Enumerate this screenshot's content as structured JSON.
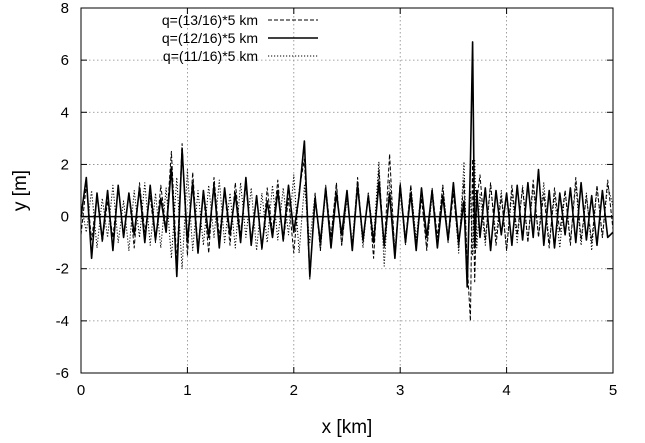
{
  "chart_data": {
    "type": "line",
    "xlabel": "x  [km]",
    "ylabel": "y  [m]",
    "xlim": [
      0,
      5
    ],
    "ylim": [
      -6,
      8
    ],
    "x_ticks": [
      0,
      1,
      2,
      3,
      4,
      5
    ],
    "y_ticks": [
      -6,
      -4,
      -2,
      0,
      2,
      4,
      6,
      8
    ],
    "grid": true,
    "legend_position": "top-left",
    "series": [
      {
        "name": "q=(13/16)*5 km",
        "style": "dashed",
        "color": "#000000",
        "x": [
          0.0,
          0.05,
          0.1,
          0.15,
          0.2,
          0.25,
          0.3,
          0.35,
          0.4,
          0.45,
          0.5,
          0.55,
          0.6,
          0.65,
          0.7,
          0.75,
          0.8,
          0.85,
          0.9,
          0.95,
          1.0,
          1.05,
          1.1,
          1.15,
          1.2,
          1.25,
          1.3,
          1.35,
          1.4,
          1.45,
          1.5,
          1.55,
          1.6,
          1.65,
          1.7,
          1.75,
          1.8,
          1.85,
          1.9,
          1.95,
          2.0,
          2.05,
          2.1,
          2.15,
          2.2,
          2.25,
          2.3,
          2.35,
          2.4,
          2.45,
          2.5,
          2.55,
          2.6,
          2.65,
          2.7,
          2.75,
          2.8,
          2.85,
          2.9,
          2.95,
          3.0,
          3.05,
          3.1,
          3.15,
          3.2,
          3.25,
          3.3,
          3.35,
          3.4,
          3.45,
          3.5,
          3.55,
          3.6,
          3.63,
          3.66,
          3.68,
          3.7,
          3.72,
          3.75,
          3.8,
          3.85,
          3.9,
          3.95,
          4.0,
          4.05,
          4.1,
          4.15,
          4.2,
          4.25,
          4.3,
          4.35,
          4.4,
          4.45,
          4.5,
          4.55,
          4.6,
          4.65,
          4.7,
          4.75,
          4.8,
          4.85,
          4.9,
          4.95,
          5.0
        ],
        "y": [
          -0.7,
          1.2,
          -0.9,
          0.8,
          -1.0,
          0.6,
          -0.8,
          1.1,
          -0.7,
          0.9,
          -1.2,
          1.3,
          -0.6,
          0.8,
          -1.0,
          1.2,
          -0.5,
          2.5,
          -1.8,
          2.8,
          -1.5,
          1.7,
          -1.2,
          0.9,
          -1.4,
          1.5,
          -0.8,
          1.0,
          -1.1,
          1.3,
          -0.7,
          1.2,
          -0.9,
          0.8,
          -1.3,
          1.1,
          -0.6,
          1.4,
          -1.0,
          0.7,
          -1.4,
          1.0,
          2.2,
          -2.4,
          0.9,
          -1.3,
          1.2,
          -0.8,
          1.3,
          -1.1,
          0.8,
          -1.2,
          1.5,
          -1.0,
          0.9,
          -1.6,
          1.8,
          -1.2,
          2.4,
          -1.5,
          1.3,
          -0.9,
          1.2,
          -1.1,
          0.7,
          -1.3,
          1.1,
          -0.8,
          1.2,
          -1.0,
          0.9,
          -1.2,
          1.4,
          -1.8,
          -4.0,
          2.2,
          -2.5,
          0.6,
          1.6,
          -0.9,
          1.3,
          -1.1,
          0.8,
          -1.3,
          1.2,
          -0.7,
          1.1,
          -1.0,
          1.4,
          -0.8,
          0.9,
          -1.2,
          1.1,
          -0.6,
          1.0,
          -1.1,
          1.5,
          -0.9,
          0.8,
          -1.0,
          1.2,
          -0.8,
          1.4,
          -0.5
        ]
      },
      {
        "name": "q=(12/16)*5 km",
        "style": "solid",
        "color": "#000000",
        "x": [
          0.0,
          0.05,
          0.1,
          0.15,
          0.2,
          0.25,
          0.3,
          0.35,
          0.4,
          0.45,
          0.5,
          0.55,
          0.6,
          0.65,
          0.7,
          0.75,
          0.8,
          0.85,
          0.9,
          0.95,
          1.0,
          1.05,
          1.1,
          1.15,
          1.2,
          1.25,
          1.3,
          1.35,
          1.4,
          1.45,
          1.5,
          1.55,
          1.6,
          1.65,
          1.7,
          1.75,
          1.8,
          1.85,
          1.9,
          1.95,
          2.0,
          2.05,
          2.1,
          2.15,
          2.2,
          2.25,
          2.3,
          2.35,
          2.4,
          2.45,
          2.5,
          2.55,
          2.6,
          2.65,
          2.7,
          2.75,
          2.8,
          2.85,
          2.9,
          2.95,
          3.0,
          3.05,
          3.1,
          3.15,
          3.2,
          3.25,
          3.3,
          3.35,
          3.4,
          3.45,
          3.5,
          3.55,
          3.6,
          3.63,
          3.66,
          3.68,
          3.7,
          3.72,
          3.75,
          3.8,
          3.85,
          3.9,
          3.95,
          4.0,
          4.05,
          4.1,
          4.15,
          4.2,
          4.25,
          4.3,
          4.35,
          4.4,
          4.45,
          4.5,
          4.55,
          4.6,
          4.65,
          4.7,
          4.75,
          4.8,
          4.85,
          4.9,
          4.95,
          5.0
        ],
        "y": [
          0.0,
          1.5,
          -1.6,
          0.9,
          -0.9,
          1.0,
          -1.3,
          1.2,
          -0.8,
          0.9,
          -0.7,
          1.1,
          -1.0,
          1.2,
          -0.9,
          0.7,
          -0.6,
          1.9,
          -2.3,
          2.6,
          -1.0,
          1.3,
          -1.4,
          1.0,
          -0.8,
          1.2,
          -1.2,
          1.1,
          -0.7,
          0.9,
          -1.0,
          1.5,
          -1.1,
          0.8,
          -1.2,
          0.6,
          -0.8,
          1.0,
          -0.9,
          1.2,
          -0.6,
          0.8,
          2.9,
          -2.3,
          0.7,
          -1.0,
          1.1,
          -1.2,
          0.9,
          -0.7,
          1.0,
          -1.3,
          1.2,
          -0.9,
          0.8,
          -1.0,
          1.3,
          -1.1,
          0.9,
          -1.6,
          1.2,
          -1.0,
          0.9,
          -1.3,
          1.1,
          -0.8,
          1.0,
          -1.2,
          0.8,
          -0.9,
          1.3,
          -1.0,
          0.6,
          -2.7,
          2.0,
          6.7,
          -1.2,
          1.0,
          -0.8,
          1.1,
          -1.3,
          1.0,
          -0.7,
          0.9,
          -1.1,
          1.2,
          -0.9,
          1.3,
          -0.8,
          1.8,
          -1.1,
          1.0,
          -1.2,
          0.9,
          -0.7,
          1.1,
          -1.0,
          1.3,
          -0.9,
          0.8,
          -1.1,
          1.0,
          -0.8,
          -0.6
        ]
      },
      {
        "name": "q=(11/16)*5 km",
        "style": "dotted",
        "color": "#000000",
        "x": [
          0.0,
          0.05,
          0.1,
          0.15,
          0.2,
          0.25,
          0.3,
          0.35,
          0.4,
          0.45,
          0.5,
          0.55,
          0.6,
          0.65,
          0.7,
          0.75,
          0.8,
          0.85,
          0.9,
          0.95,
          1.0,
          1.05,
          1.1,
          1.15,
          1.2,
          1.25,
          1.3,
          1.35,
          1.4,
          1.45,
          1.5,
          1.55,
          1.6,
          1.65,
          1.7,
          1.75,
          1.8,
          1.85,
          1.9,
          1.95,
          2.0,
          2.05,
          2.1,
          2.15,
          2.2,
          2.25,
          2.3,
          2.35,
          2.4,
          2.45,
          2.5,
          2.55,
          2.6,
          2.65,
          2.7,
          2.75,
          2.8,
          2.85,
          2.9,
          2.95,
          3.0,
          3.05,
          3.1,
          3.15,
          3.2,
          3.25,
          3.3,
          3.35,
          3.4,
          3.45,
          3.5,
          3.55,
          3.6,
          3.63,
          3.66,
          3.68,
          3.7,
          3.72,
          3.75,
          3.8,
          3.85,
          3.9,
          3.95,
          4.0,
          4.05,
          4.1,
          4.15,
          4.2,
          4.25,
          4.3,
          4.35,
          4.4,
          4.45,
          4.5,
          4.55,
          4.6,
          4.65,
          4.7,
          4.75,
          4.8,
          4.85,
          4.9,
          4.95,
          5.0
        ],
        "y": [
          0.5,
          -0.6,
          1.0,
          -1.2,
          0.7,
          -0.8,
          1.2,
          -1.0,
          0.6,
          -1.3,
          1.0,
          -0.8,
          1.3,
          -1.1,
          0.9,
          -1.2,
          1.1,
          -1.6,
          1.5,
          -2.0,
          1.8,
          -1.3,
          1.0,
          -1.1,
          1.2,
          -0.8,
          1.4,
          -1.0,
          0.9,
          -1.2,
          1.3,
          -0.8,
          1.1,
          -1.3,
          0.9,
          -1.0,
          1.2,
          -0.9,
          1.1,
          -0.7,
          1.6,
          -1.4,
          1.2,
          -1.0,
          0.9,
          -1.3,
          1.0,
          -0.8,
          1.2,
          -1.1,
          0.7,
          -1.0,
          1.3,
          -1.2,
          0.9,
          -0.8,
          2.1,
          -1.9,
          1.4,
          -1.3,
          1.0,
          -1.1,
          1.2,
          -0.9,
          1.1,
          -1.2,
          0.8,
          -1.0,
          1.2,
          -0.8,
          1.1,
          -1.4,
          2.1,
          -2.2,
          1.0,
          -1.5,
          2.2,
          -1.2,
          0.9,
          -1.1,
          1.2,
          -0.8,
          1.0,
          -1.3,
          0.9,
          -1.0,
          1.2,
          -0.9,
          1.1,
          -0.7,
          1.3,
          -1.0,
          0.8,
          -1.2,
          1.0,
          -0.9,
          1.2,
          -1.1,
          0.9,
          -1.3,
          1.1,
          -0.8,
          1.2,
          0.4
        ]
      }
    ]
  }
}
